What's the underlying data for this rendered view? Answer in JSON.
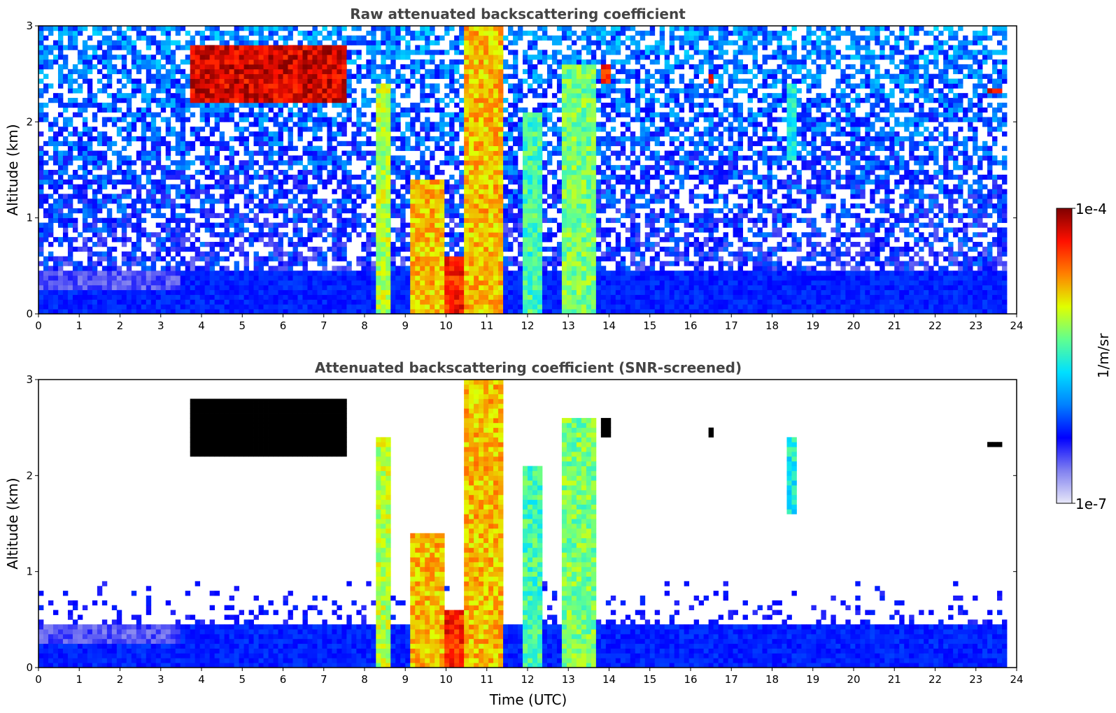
{
  "chart_data": [
    {
      "type": "heatmap",
      "title": "Raw attenuated backscattering coefficient",
      "xlabel": "",
      "ylabel": "Altitude (km)",
      "xlim": [
        0,
        24
      ],
      "ylim": [
        0,
        3
      ],
      "x_ticks": [
        "0",
        "1",
        "2",
        "3",
        "4",
        "5",
        "6",
        "7",
        "8",
        "9",
        "10",
        "11",
        "12",
        "13",
        "14",
        "15",
        "16",
        "17",
        "18",
        "19",
        "20",
        "21",
        "22",
        "23",
        "24"
      ],
      "y_ticks": [
        "0",
        "1",
        "2",
        "3"
      ],
      "background_level": {
        "surface_top_km": 0.45,
        "noise": "dense blue noise above 0.45 km"
      },
      "features": [
        {
          "x_start": 3.7,
          "x_end": 7.5,
          "alt_start_km": 2.2,
          "alt_end_km": 2.8,
          "kind": "cloud",
          "level": 1.0
        },
        {
          "x_start": 8.3,
          "x_end": 8.6,
          "alt_start_km": 0.0,
          "alt_end_km": 2.4,
          "kind": "plume",
          "level": 0.7
        },
        {
          "x_start": 9.1,
          "x_end": 10.0,
          "alt_start_km": 0.0,
          "alt_end_km": 1.4,
          "kind": "plume",
          "level": 0.8
        },
        {
          "x_start": 10.0,
          "x_end": 10.6,
          "alt_start_km": 0.0,
          "alt_end_km": 0.6,
          "kind": "plume",
          "level": 0.95
        },
        {
          "x_start": 10.5,
          "x_end": 11.4,
          "alt_start_km": 0.0,
          "alt_end_km": 3.0,
          "kind": "plume",
          "level": 0.8
        },
        {
          "x_start": 11.9,
          "x_end": 12.3,
          "alt_start_km": 0.0,
          "alt_end_km": 2.1,
          "kind": "plume",
          "level": 0.6
        },
        {
          "x_start": 12.8,
          "x_end": 13.7,
          "alt_start_km": 0.0,
          "alt_end_km": 2.6,
          "kind": "plume",
          "level": 0.65
        },
        {
          "x_start": 13.8,
          "x_end": 14.1,
          "alt_start_km": 2.4,
          "alt_end_km": 2.6,
          "kind": "cloud",
          "level": 0.95
        },
        {
          "x_start": 16.4,
          "x_end": 16.6,
          "alt_start_km": 2.4,
          "alt_end_km": 2.5,
          "kind": "cloud",
          "level": 1.0
        },
        {
          "x_start": 18.4,
          "x_end": 18.6,
          "alt_start_km": 1.6,
          "alt_end_km": 2.4,
          "kind": "plume",
          "level": 0.55
        },
        {
          "x_start": 23.3,
          "x_end": 23.7,
          "alt_start_km": 2.3,
          "alt_end_km": 2.35,
          "kind": "cloud",
          "level": 1.0
        }
      ]
    },
    {
      "type": "heatmap",
      "title": "Attenuated backscattering coefficient (SNR-screened)",
      "xlabel": "Time (UTC)",
      "ylabel": "Altitude (km)",
      "xlim": [
        0,
        24
      ],
      "ylim": [
        0,
        3
      ],
      "x_ticks": [
        "0",
        "1",
        "2",
        "3",
        "4",
        "5",
        "6",
        "7",
        "8",
        "9",
        "10",
        "11",
        "12",
        "13",
        "14",
        "15",
        "16",
        "17",
        "18",
        "19",
        "20",
        "21",
        "22",
        "23",
        "24"
      ],
      "y_ticks": [
        "0",
        "1",
        "2",
        "3"
      ],
      "background_level": {
        "surface_top_km": 0.45,
        "noise": "screened out (white) above boundary layer"
      },
      "features": [
        {
          "x_start": 3.7,
          "x_end": 7.5,
          "alt_start_km": 2.2,
          "alt_end_km": 2.8,
          "kind": "cloud-masked",
          "level": 1.0
        },
        {
          "x_start": 8.3,
          "x_end": 8.6,
          "alt_start_km": 0.0,
          "alt_end_km": 2.4,
          "kind": "plume",
          "level": 0.7
        },
        {
          "x_start": 9.1,
          "x_end": 10.0,
          "alt_start_km": 0.0,
          "alt_end_km": 1.4,
          "kind": "plume",
          "level": 0.8
        },
        {
          "x_start": 10.0,
          "x_end": 10.6,
          "alt_start_km": 0.0,
          "alt_end_km": 0.6,
          "kind": "plume",
          "level": 0.95
        },
        {
          "x_start": 10.5,
          "x_end": 11.4,
          "alt_start_km": 0.0,
          "alt_end_km": 3.0,
          "kind": "plume",
          "level": 0.8
        },
        {
          "x_start": 11.9,
          "x_end": 12.3,
          "alt_start_km": 0.0,
          "alt_end_km": 2.1,
          "kind": "plume",
          "level": 0.6
        },
        {
          "x_start": 12.8,
          "x_end": 13.7,
          "alt_start_km": 0.0,
          "alt_end_km": 2.6,
          "kind": "plume",
          "level": 0.65
        },
        {
          "x_start": 13.8,
          "x_end": 14.1,
          "alt_start_km": 2.4,
          "alt_end_km": 2.6,
          "kind": "cloud-masked",
          "level": 1.0
        },
        {
          "x_start": 16.4,
          "x_end": 16.6,
          "alt_start_km": 2.4,
          "alt_end_km": 2.5,
          "kind": "cloud-masked",
          "level": 1.0
        },
        {
          "x_start": 18.4,
          "x_end": 18.6,
          "alt_start_km": 1.6,
          "alt_end_km": 2.4,
          "kind": "plume",
          "level": 0.55
        },
        {
          "x_start": 23.3,
          "x_end": 23.7,
          "alt_start_km": 2.3,
          "alt_end_km": 2.35,
          "kind": "cloud-masked",
          "level": 1.0
        }
      ]
    }
  ],
  "colorbar": {
    "label": "1/m/sr",
    "max_label": "1e-4",
    "min_label": "1e-7",
    "colormap": "jet",
    "colors": [
      "#e8e8f8",
      "#8080f0",
      "#0000ff",
      "#0080ff",
      "#00e0ff",
      "#60ff90",
      "#e0ff00",
      "#ff8000",
      "#ff1000",
      "#800000"
    ]
  }
}
